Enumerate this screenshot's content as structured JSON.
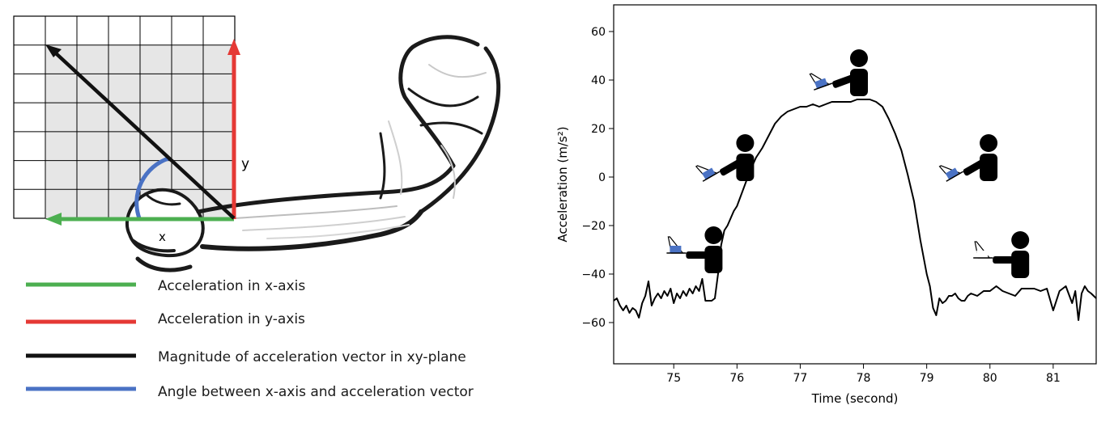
{
  "diagram": {
    "axis_labels": {
      "x": "x",
      "y": "y"
    },
    "colors": {
      "x_axis": "#4caf50",
      "y_axis": "#e53935",
      "vector": "#111111",
      "angle": "#4a72c4",
      "grid_fill": "#e6e6e6"
    },
    "legend": [
      {
        "label": "Acceleration in x-axis",
        "color": "#4caf50"
      },
      {
        "label": "Acceleration in y-axis",
        "color": "#e53935"
      },
      {
        "label": "Magnitude of acceleration vector in xy-plane",
        "color": "#111111"
      },
      {
        "label": "Angle between x-axis and acceleration vector",
        "color": "#4a72c4"
      }
    ],
    "icons": [
      "arm-sketch-icon"
    ]
  },
  "chart_data": {
    "type": "line",
    "title": "",
    "xlabel": "Time (second)",
    "ylabel": "Acceleration (m/s²)",
    "xlim": [
      74.05,
      81.68
    ],
    "ylim": [
      -77,
      71
    ],
    "xticks": [
      75,
      76,
      77,
      78,
      79,
      80,
      81
    ],
    "yticks": [
      -60,
      -40,
      -20,
      0,
      20,
      40,
      60
    ],
    "grid": false,
    "line_color": "#000000",
    "series": [
      {
        "x": [
          74.05,
          74.1,
          74.15,
          74.2,
          74.25,
          74.3,
          74.35,
          74.4,
          74.45,
          74.5,
          74.55,
          74.6,
          74.65,
          74.7,
          74.75,
          74.8,
          74.85,
          74.9,
          74.95,
          75.0,
          75.05,
          75.1,
          75.15,
          75.2,
          75.25,
          75.3,
          75.35,
          75.4,
          75.45,
          75.5,
          75.55,
          75.6,
          75.65,
          75.7,
          75.75,
          75.8,
          75.85,
          75.9,
          75.95,
          76.0,
          76.1,
          76.2,
          76.3,
          76.4,
          76.5,
          76.6,
          76.7,
          76.8,
          76.9,
          77.0,
          77.1,
          77.2,
          77.3,
          77.4,
          77.5,
          77.6,
          77.7,
          77.8,
          77.9,
          78.0,
          78.1,
          78.2,
          78.3,
          78.4,
          78.5,
          78.6,
          78.7,
          78.8,
          78.9,
          79.0,
          79.05,
          79.1,
          79.15,
          79.2,
          79.25,
          79.3,
          79.35,
          79.4,
          79.45,
          79.5,
          79.55,
          79.6,
          79.65,
          79.7,
          79.8,
          79.9,
          80.0,
          80.1,
          80.2,
          80.3,
          80.4,
          80.5,
          80.6,
          80.7,
          80.8,
          80.9,
          81.0,
          81.1,
          81.2,
          81.3,
          81.35,
          81.4,
          81.45,
          81.5,
          81.55,
          81.6,
          81.68
        ],
        "y": [
          -51,
          -50,
          -53,
          -55,
          -53,
          -56,
          -54,
          -55,
          -58,
          -52,
          -49,
          -43,
          -53,
          -50,
          -48,
          -50,
          -47,
          -49,
          -46,
          -52,
          -48,
          -50,
          -47,
          -49,
          -46,
          -48,
          -45,
          -47,
          -42,
          -51,
          -51,
          -51,
          -50,
          -40,
          -28,
          -22,
          -20,
          -17,
          -14,
          -12,
          -5,
          2,
          8,
          12,
          17,
          22,
          25,
          27,
          28,
          29,
          29,
          30,
          29,
          30,
          31,
          31,
          31,
          31,
          32,
          32,
          32,
          31,
          29,
          24,
          18,
          11,
          1,
          -10,
          -26,
          -40,
          -45,
          -54,
          -57,
          -50,
          -52,
          -51,
          -49,
          -49,
          -48,
          -50,
          -51,
          -51,
          -49,
          -48,
          -49,
          -47,
          -47,
          -45,
          -47,
          -48,
          -49,
          -46,
          -46,
          -46,
          -47,
          -46,
          -55,
          -47,
          -45,
          -52,
          -47,
          -59,
          -48,
          -45,
          -47,
          -48,
          -50
        ]
      }
    ],
    "annotations": [
      {
        "name": "person-arm-down-icon",
        "x": 75.45,
        "y": -30,
        "held_angle": "low"
      },
      {
        "name": "person-arm-raising-icon",
        "x": 75.95,
        "y": 8,
        "held_angle": "mid"
      },
      {
        "name": "person-arm-up-icon",
        "x": 77.75,
        "y": 43,
        "held_angle": "high"
      },
      {
        "name": "person-arm-lowering-icon",
        "x": 79.8,
        "y": 8,
        "held_angle": "mid"
      },
      {
        "name": "person-arm-rest-icon",
        "x": 80.3,
        "y": -32,
        "held_angle": "low"
      }
    ]
  }
}
